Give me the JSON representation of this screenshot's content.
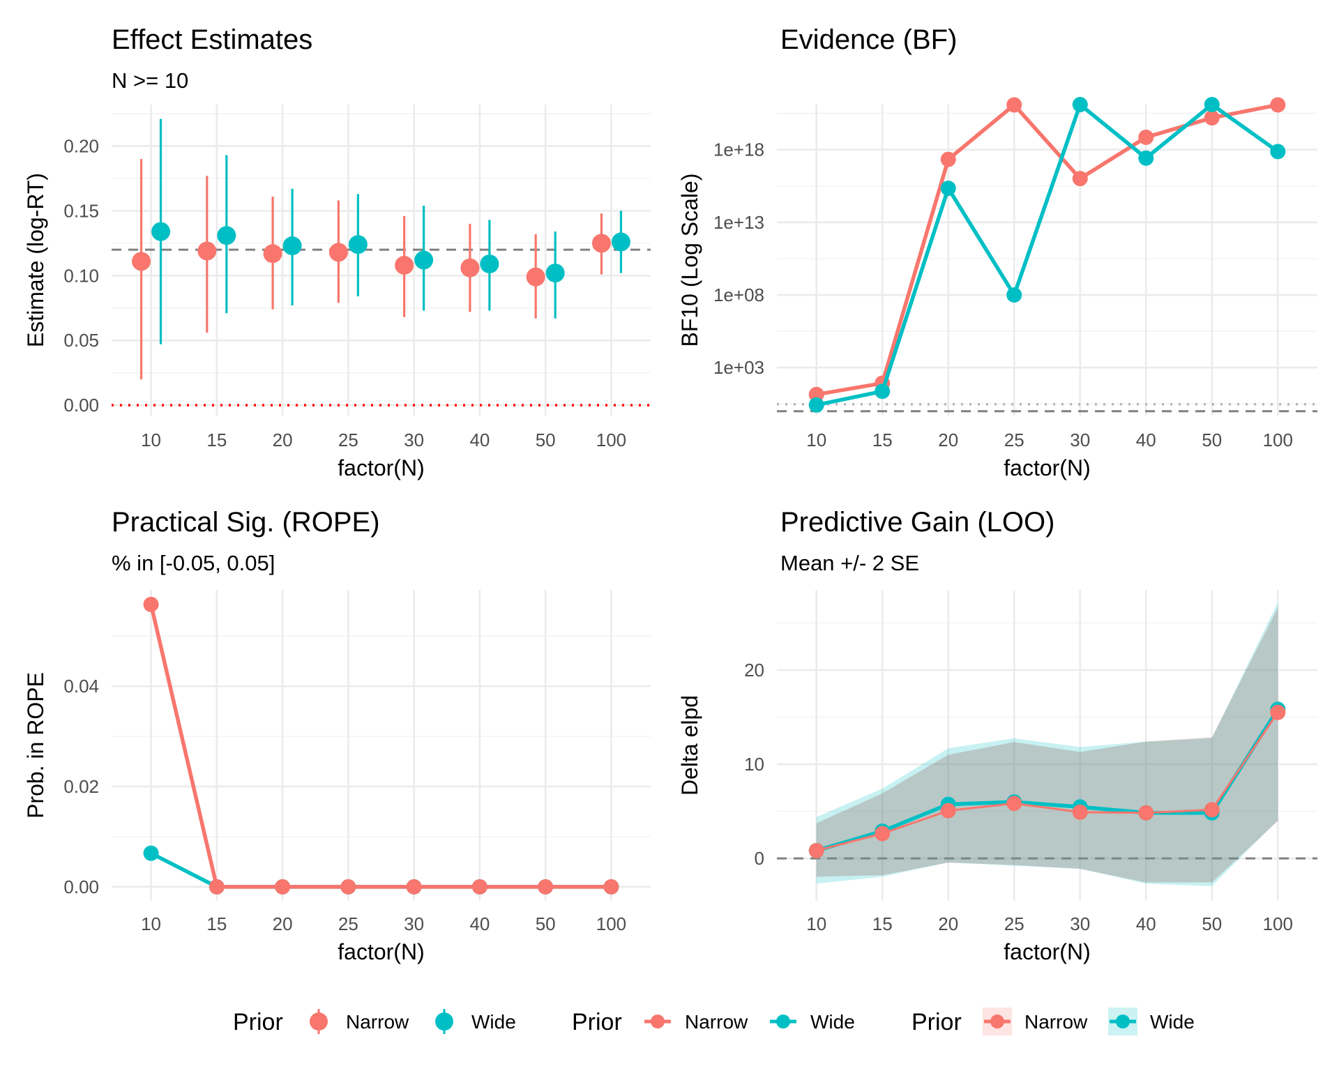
{
  "colors": {
    "narrow": "#F8766D",
    "wide": "#00BFC4",
    "ref_line": "#808080",
    "zero_line": "#FF0000",
    "bf_dotted": "#b3b3b3",
    "band_fill": "#4a8a87"
  },
  "legend": {
    "groups": [
      {
        "title": "Prior",
        "kind": "pointrange",
        "items": [
          {
            "label": "Narrow",
            "series": "narrow"
          },
          {
            "label": "Wide",
            "series": "wide"
          }
        ]
      },
      {
        "title": "Prior",
        "kind": "line-point",
        "items": [
          {
            "label": "Narrow",
            "series": "narrow"
          },
          {
            "label": "Wide",
            "series": "wide"
          }
        ]
      },
      {
        "title": "Prior",
        "kind": "line-point-fill",
        "items": [
          {
            "label": "Narrow",
            "series": "narrow"
          },
          {
            "label": "Wide",
            "series": "wide"
          }
        ]
      }
    ]
  },
  "chart_data": [
    {
      "id": "effect",
      "type": "pointrange",
      "title": "Effect Estimates",
      "subtitle": "N >= 10",
      "xlabel": "factor(N)",
      "ylabel": "Estimate (log-RT)",
      "categories": [
        "10",
        "15",
        "20",
        "25",
        "30",
        "40",
        "50",
        "100"
      ],
      "ylim": [
        -0.008,
        0.232
      ],
      "yticks": [
        0.0,
        0.05,
        0.1,
        0.15,
        0.2
      ],
      "ytick_labels": [
        "0.00",
        "0.05",
        "0.10",
        "0.15",
        "0.20"
      ],
      "hlines": [
        {
          "y": 0.12,
          "style": "dashed",
          "color": "ref_line"
        },
        {
          "y": 0.0,
          "style": "dotted",
          "color": "zero_line"
        }
      ],
      "series": [
        {
          "name": "Narrow",
          "key": "narrow",
          "values": [
            0.111,
            0.119,
            0.117,
            0.118,
            0.108,
            0.106,
            0.099,
            0.125
          ],
          "lower": [
            0.02,
            0.056,
            0.074,
            0.079,
            0.068,
            0.072,
            0.067,
            0.101
          ],
          "upper": [
            0.19,
            0.177,
            0.161,
            0.158,
            0.146,
            0.14,
            0.132,
            0.148
          ]
        },
        {
          "name": "Wide",
          "key": "wide",
          "values": [
            0.134,
            0.131,
            0.123,
            0.124,
            0.112,
            0.109,
            0.102,
            0.126
          ],
          "lower": [
            0.047,
            0.071,
            0.077,
            0.084,
            0.073,
            0.073,
            0.067,
            0.102
          ],
          "upper": [
            0.221,
            0.193,
            0.167,
            0.163,
            0.154,
            0.143,
            0.134,
            0.15
          ]
        }
      ],
      "grid": true
    },
    {
      "id": "evidence",
      "type": "line",
      "title": "Evidence (BF)",
      "subtitle": "",
      "xlabel": "factor(N)",
      "ylabel": "BF10 (Log Scale)",
      "yscale": "log10",
      "categories": [
        "10",
        "15",
        "20",
        "25",
        "30",
        "40",
        "50",
        "100"
      ],
      "ylim_log10": [
        -0.3,
        21.1
      ],
      "yticks_log10": [
        3,
        8,
        13,
        18
      ],
      "ytick_labels": [
        "1e+03",
        "1e+08",
        "1e+13",
        "1e+18"
      ],
      "hlines_log10": [
        {
          "y": 0,
          "style": "dashed",
          "color": "ref_line"
        },
        {
          "y": 0.477,
          "style": "dotted",
          "color": "bf_dotted"
        }
      ],
      "series": [
        {
          "name": "Narrow",
          "key": "narrow",
          "log10_values": [
            1.15,
            1.93,
            17.33,
            21.08,
            16.01,
            18.85,
            20.19,
            21.08
          ]
        },
        {
          "name": "Wide",
          "key": "wide",
          "log10_values": [
            0.43,
            1.37,
            15.34,
            8.0,
            21.1,
            17.42,
            21.1,
            17.87
          ]
        }
      ],
      "grid": true
    },
    {
      "id": "rope",
      "type": "line",
      "title": "Practical Sig. (ROPE)",
      "subtitle": "% in [-0.05, 0.05]",
      "xlabel": "factor(N)",
      "ylabel": "Prob. in ROPE",
      "categories": [
        "10",
        "15",
        "20",
        "25",
        "30",
        "40",
        "50",
        "100"
      ],
      "ylim": [
        -0.0028,
        0.0592
      ],
      "yticks": [
        0.0,
        0.02,
        0.04
      ],
      "ytick_labels": [
        "0.00",
        "0.02",
        "0.04"
      ],
      "series": [
        {
          "name": "Narrow",
          "key": "narrow",
          "values": [
            0.0563,
            0,
            0,
            0,
            0,
            0,
            0,
            0
          ]
        },
        {
          "name": "Wide",
          "key": "wide",
          "values": [
            0.0067,
            0,
            0,
            0,
            0,
            0,
            0,
            0
          ]
        }
      ],
      "draw_order": [
        "wide",
        "narrow"
      ],
      "grid": true
    },
    {
      "id": "loo",
      "type": "area",
      "title": "Predictive Gain (LOO)",
      "subtitle": "Mean +/- 2 SE",
      "xlabel": "factor(N)",
      "ylabel": "Delta elpd",
      "categories": [
        "10",
        "15",
        "20",
        "25",
        "30",
        "40",
        "50",
        "100"
      ],
      "ylim": [
        -4.5,
        28.5
      ],
      "yticks": [
        0,
        10,
        20
      ],
      "ytick_labels": [
        "0",
        "10",
        "20"
      ],
      "hlines": [
        {
          "y": 0,
          "style": "dashed",
          "color": "ref_line"
        }
      ],
      "series": [
        {
          "name": "Narrow",
          "key": "narrow",
          "values": [
            0.83,
            2.64,
            5.07,
            5.84,
            4.91,
            4.84,
            5.17,
            15.5
          ],
          "lower": [
            -1.94,
            -1.77,
            -0.43,
            -0.7,
            -1.1,
            -2.54,
            -2.54,
            3.97
          ],
          "upper": [
            3.74,
            6.9,
            11.0,
            12.35,
            11.3,
            12.4,
            12.85,
            26.6
          ]
        },
        {
          "name": "Wide",
          "key": "wide",
          "values": [
            0.83,
            2.9,
            5.74,
            6.0,
            5.47,
            4.84,
            4.84,
            15.83
          ],
          "lower": [
            -2.67,
            -1.94,
            -0.43,
            -0.77,
            -1.1,
            -2.67,
            -2.94,
            4.07
          ],
          "upper": [
            4.4,
            7.41,
            11.69,
            12.75,
            11.82,
            12.4,
            12.75,
            27.2
          ]
        }
      ],
      "draw_order": [
        "wide",
        "narrow"
      ],
      "grid": true
    }
  ]
}
